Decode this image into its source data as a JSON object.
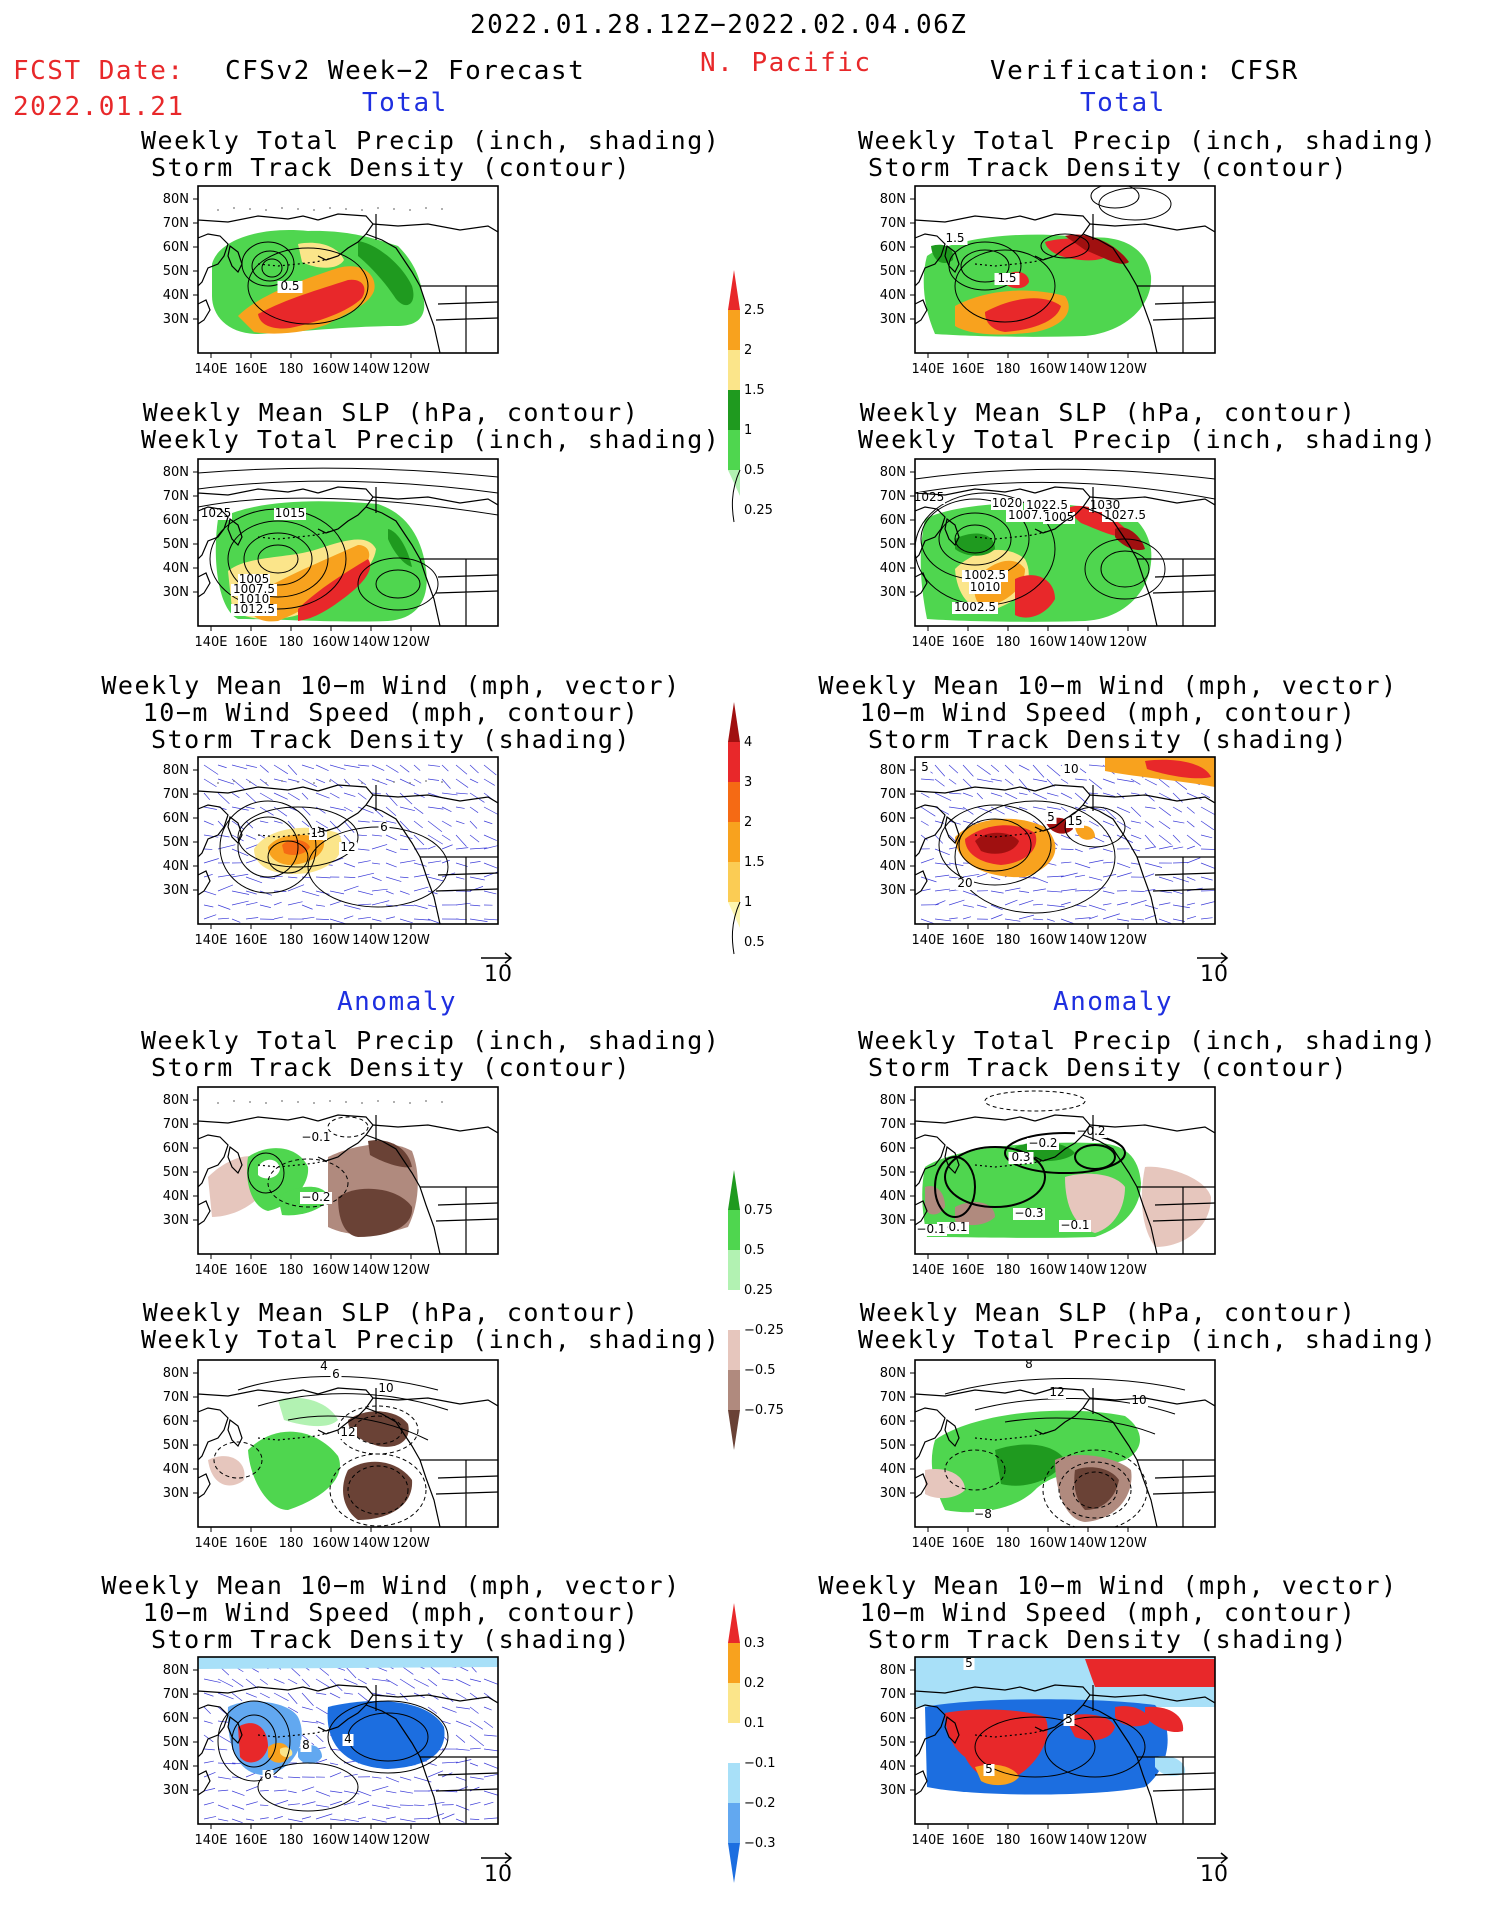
{
  "header": {
    "period": "2022.01.28.12Z−2022.02.04.06Z",
    "fcst_label": "FCST Date:",
    "fcst_date": "2022.01.21",
    "model": "CFSv2 Week−2 Forecast",
    "region": "N. Pacific",
    "verification": "Verification: CFSR"
  },
  "sections": {
    "total": "Total",
    "anomaly": "Anomaly"
  },
  "titles": {
    "precip_storm": [
      "Weekly Total Precip (inch, shading)",
      "Storm Track Density (contour)"
    ],
    "slp_precip": [
      "Weekly Mean SLP (hPa, contour)",
      "Weekly Total Precip (inch, shading)"
    ],
    "wind_storm": [
      "Weekly Mean 10−m Wind (mph, vector)",
      "10−m Wind Speed (mph, contour)",
      "Storm Track Density (shading)"
    ]
  },
  "axes": {
    "lat": [
      "80N",
      "70N",
      "60N",
      "50N",
      "40N",
      "30N"
    ],
    "lon": [
      "140E",
      "160E",
      "180",
      "160W",
      "140W",
      "120W"
    ]
  },
  "vector_ref": "10",
  "colorbars": {
    "precip_total": {
      "labels": [
        "2.5",
        "2",
        "1.5",
        "1",
        "0.5",
        "0.25"
      ],
      "colors": [
        "#e8282a",
        "#f8a21e",
        "#fbe58a",
        "#1f9a1f",
        "#4fd64f",
        "#b2f2b2"
      ]
    },
    "storm_total": {
      "labels": [
        "4",
        "3",
        "2",
        "1.5",
        "1",
        "0.5"
      ],
      "colors": [
        "#a01010",
        "#e8282a",
        "#f56a14",
        "#f8a21e",
        "#fbcc54",
        "#fdf6b0"
      ]
    },
    "precip_anom": {
      "labels": [
        "0.75",
        "0.5",
        "0.25",
        "−0.25",
        "−0.5",
        "−0.75"
      ],
      "colors": [
        "#1f9a1f",
        "#4fd64f",
        "#b2f2b2",
        "#ffffff",
        "#e6c6bd",
        "#b08a7e",
        "#6a4236"
      ]
    },
    "storm_anom": {
      "labels": [
        "0.3",
        "0.2",
        "0.1",
        "−0.1",
        "−0.2",
        "−0.3"
      ],
      "colors": [
        "#e8282a",
        "#f8a21e",
        "#fbe58a",
        "#ffffff",
        "#a8e0f8",
        "#62a8f0",
        "#1c6ee0"
      ]
    }
  },
  "panel_labels": {
    "fc_precip": [
      "0.5"
    ],
    "fc_slp": [
      "1025",
      "1015",
      "1005",
      "1007.5",
      "1010",
      "1012.5"
    ],
    "fc_wind": [
      "15",
      "12",
      "6"
    ],
    "ob_precip": [
      "1.5",
      "1.5"
    ],
    "ob_slp": [
      "1025",
      "1020",
      "1022.5",
      "1030",
      "1007.5",
      "1005",
      "1027.5",
      "1002.5",
      "1010",
      "1002.5"
    ],
    "ob_wind": [
      "5",
      "10",
      "5",
      "15",
      "20"
    ],
    "fca_precip": [
      "−0.1",
      "−0.2"
    ],
    "fca_slp": [
      "4",
      "6",
      "10",
      "12"
    ],
    "fca_wind": [
      "4",
      "8",
      "6"
    ],
    "oba_precip": [
      "−0.2",
      "−0.2",
      "0.3",
      "−0.1",
      "−0.3",
      "−0.1",
      "−0.1"
    ],
    "oba_slp": [
      "8",
      "12",
      "10",
      "−8"
    ],
    "oba_wind": [
      "5",
      "5",
      "5"
    ]
  }
}
